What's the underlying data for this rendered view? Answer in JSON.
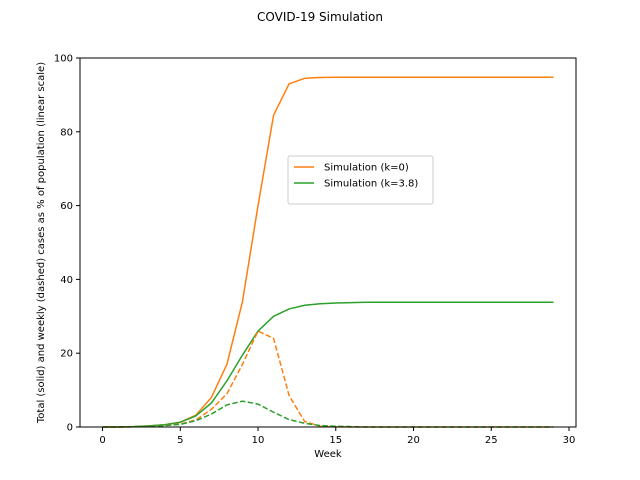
{
  "chart_data": {
    "type": "line",
    "title": "COVID-19 Simulation",
    "xlabel": "Week",
    "ylabel": "Total (solid) and weekly (dashed) cases as % of population (linear scale)",
    "xlim": [
      -1.45,
      30.45
    ],
    "ylim": [
      0,
      100
    ],
    "xticks": [
      0,
      5,
      10,
      15,
      20,
      25,
      30
    ],
    "yticks": [
      0,
      20,
      40,
      60,
      80,
      100
    ],
    "grid": false,
    "legend_placement": "center-right",
    "x": [
      0,
      1,
      2,
      3,
      4,
      5,
      6,
      7,
      8,
      9,
      10,
      11,
      12,
      13,
      14,
      15,
      16,
      17,
      18,
      19,
      20,
      21,
      22,
      23,
      24,
      25,
      26,
      27,
      28,
      29
    ],
    "series": [
      {
        "name": "Simulation (k=0)",
        "color": "#ff7f0e",
        "style": "solid",
        "legend": true,
        "values": [
          0,
          0,
          0.1,
          0.3,
          0.6,
          1.3,
          3.2,
          8.0,
          17.0,
          34.0,
          60.0,
          84.5,
          93.0,
          94.5,
          94.7,
          94.8,
          94.8,
          94.8,
          94.8,
          94.8,
          94.8,
          94.8,
          94.8,
          94.8,
          94.8,
          94.8,
          94.8,
          94.8,
          94.8,
          94.8
        ]
      },
      {
        "name": "Simulation (k=3.8)",
        "color": "#2ca02c",
        "style": "solid",
        "legend": true,
        "values": [
          0,
          0,
          0.1,
          0.3,
          0.6,
          1.3,
          3.0,
          6.5,
          12.5,
          19.5,
          26.0,
          30.0,
          32.0,
          33.0,
          33.4,
          33.6,
          33.7,
          33.8,
          33.8,
          33.8,
          33.8,
          33.8,
          33.8,
          33.8,
          33.8,
          33.8,
          33.8,
          33.8,
          33.8,
          33.8
        ]
      },
      {
        "name": "",
        "color": "#ff7f0e",
        "style": "dashed",
        "legend": false,
        "values": [
          0,
          0,
          0.05,
          0.2,
          0.4,
          0.8,
          1.9,
          4.8,
          9.0,
          17.0,
          26.0,
          24.0,
          8.5,
          1.5,
          0.2,
          0.05,
          0,
          0,
          0,
          0,
          0,
          0,
          0,
          0,
          0,
          0,
          0,
          0,
          0,
          0
        ]
      },
      {
        "name": "",
        "color": "#2ca02c",
        "style": "dashed",
        "legend": false,
        "values": [
          0,
          0,
          0.05,
          0.2,
          0.4,
          0.7,
          1.7,
          3.5,
          6.0,
          7.0,
          6.2,
          4.0,
          2.0,
          1.0,
          0.4,
          0.2,
          0.1,
          0,
          0,
          0,
          0,
          0,
          0,
          0,
          0,
          0,
          0,
          0,
          0,
          0
        ]
      }
    ]
  }
}
